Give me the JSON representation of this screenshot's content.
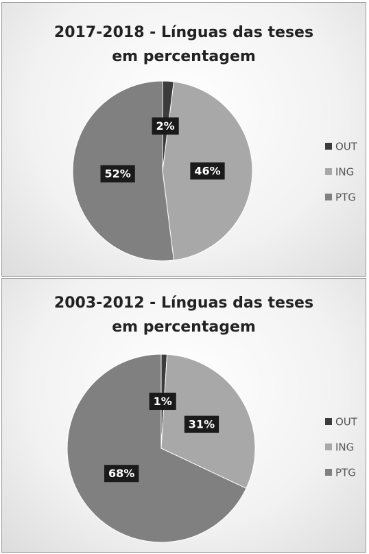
{
  "chart_data": [
    {
      "type": "pie",
      "title": "2017-2018 - Línguas das teses em percentagem",
      "categories": [
        "OUT",
        "ING",
        "PTG"
      ],
      "values": [
        2,
        46,
        52
      ],
      "value_labels": [
        "2%",
        "46%",
        "52%"
      ],
      "colors": [
        "#3c3c3c",
        "#a8a8a8",
        "#808080"
      ],
      "legend": "right"
    },
    {
      "type": "pie",
      "title": "2003-2012 - Línguas das teses em percentagem",
      "categories": [
        "OUT",
        "ING",
        "PTG"
      ],
      "values": [
        1,
        31,
        68
      ],
      "value_labels": [
        "1%",
        "31%",
        "68%"
      ],
      "colors": [
        "#3c3c3c",
        "#a8a8a8",
        "#808080"
      ],
      "legend": "right"
    }
  ]
}
